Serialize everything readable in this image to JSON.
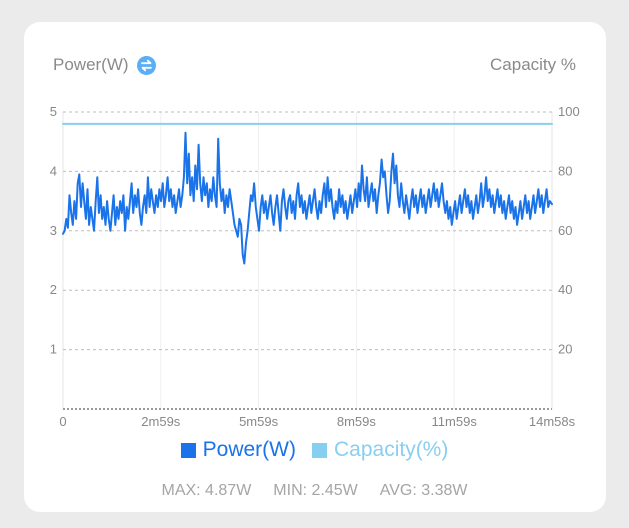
{
  "header": {
    "left_title": "Power(W)",
    "swap_icon": "swap-arrows-icon",
    "right_title": "Capacity %"
  },
  "colors": {
    "power": "#1a73e8",
    "capacity": "#87cff0",
    "grid": "#bdbdbd",
    "tick_text": "#888888"
  },
  "legend": {
    "power_label": "Power(W)",
    "capacity_label": "Capacity(%)"
  },
  "stats": {
    "max": "MAX: 4.87W",
    "min": "MIN: 2.45W",
    "avg": "AVG: 3.38W"
  },
  "chart_data": {
    "type": "line",
    "x_range": [
      0,
      898
    ],
    "x_ticks": [
      "0",
      "2m59s",
      "5m59s",
      "8m59s",
      "11m59s",
      "14m58s"
    ],
    "y_left": {
      "label": "Power(W)",
      "range": [
        0,
        5
      ],
      "ticks": [
        "1",
        "2",
        "3",
        "4",
        "5"
      ]
    },
    "y_right": {
      "label": "Capacity %",
      "range": [
        0,
        100
      ],
      "ticks": [
        "20",
        "40",
        "60",
        "80",
        "100"
      ]
    },
    "grid": true,
    "series": [
      {
        "name": "Power(W)",
        "axis": "left",
        "points": [
          [
            0,
            2.95
          ],
          [
            3,
            3.0
          ],
          [
            6,
            3.2
          ],
          [
            9,
            3.05
          ],
          [
            12,
            3.6
          ],
          [
            15,
            3.3
          ],
          [
            18,
            3.1
          ],
          [
            21,
            3.5
          ],
          [
            24,
            3.2
          ],
          [
            27,
            3.8
          ],
          [
            30,
            3.95
          ],
          [
            33,
            3.4
          ],
          [
            36,
            3.8
          ],
          [
            39,
            3.5
          ],
          [
            42,
            3.2
          ],
          [
            45,
            3.7
          ],
          [
            48,
            3.1
          ],
          [
            51,
            3.4
          ],
          [
            54,
            3.2
          ],
          [
            57,
            3.0
          ],
          [
            60,
            3.5
          ],
          [
            63,
            3.9
          ],
          [
            66,
            3.3
          ],
          [
            69,
            3.6
          ],
          [
            72,
            3.2
          ],
          [
            75,
            3.4
          ],
          [
            78,
            3.1
          ],
          [
            81,
            3.5
          ],
          [
            84,
            3.2
          ],
          [
            87,
            3.0
          ],
          [
            90,
            3.3
          ],
          [
            93,
            3.6
          ],
          [
            96,
            3.1
          ],
          [
            99,
            3.4
          ],
          [
            102,
            3.2
          ],
          [
            105,
            3.5
          ],
          [
            108,
            3.3
          ],
          [
            111,
            3.6
          ],
          [
            114,
            3.0
          ],
          [
            117,
            3.4
          ],
          [
            120,
            3.2
          ],
          [
            123,
            3.5
          ],
          [
            126,
            3.8
          ],
          [
            129,
            3.3
          ],
          [
            132,
            3.6
          ],
          [
            135,
            3.4
          ],
          [
            138,
            3.7
          ],
          [
            141,
            3.3
          ],
          [
            144,
            3.1
          ],
          [
            147,
            3.4
          ],
          [
            150,
            3.6
          ],
          [
            153,
            3.3
          ],
          [
            156,
            3.9
          ],
          [
            159,
            3.4
          ],
          [
            162,
            3.7
          ],
          [
            165,
            3.5
          ],
          [
            168,
            3.3
          ],
          [
            171,
            3.6
          ],
          [
            174,
            3.4
          ],
          [
            177,
            3.7
          ],
          [
            180,
            3.5
          ],
          [
            183,
            3.8
          ],
          [
            186,
            3.4
          ],
          [
            189,
            3.6
          ],
          [
            192,
            3.9
          ],
          [
            195,
            3.5
          ],
          [
            198,
            3.7
          ],
          [
            201,
            3.4
          ],
          [
            204,
            3.6
          ],
          [
            207,
            3.3
          ],
          [
            210,
            3.5
          ],
          [
            213,
            3.7
          ],
          [
            216,
            3.4
          ],
          [
            219,
            3.6
          ],
          [
            222,
            3.9
          ],
          [
            225,
            4.65
          ],
          [
            228,
            3.8
          ],
          [
            231,
            4.3
          ],
          [
            234,
            3.6
          ],
          [
            237,
            3.9
          ],
          [
            240,
            3.5
          ],
          [
            243,
            4.1
          ],
          [
            246,
            3.7
          ],
          [
            249,
            4.45
          ],
          [
            252,
            3.8
          ],
          [
            255,
            3.5
          ],
          [
            258,
            3.9
          ],
          [
            261,
            3.6
          ],
          [
            264,
            3.8
          ],
          [
            267,
            3.4
          ],
          [
            270,
            3.7
          ],
          [
            273,
            3.5
          ],
          [
            276,
            3.9
          ],
          [
            279,
            3.6
          ],
          [
            282,
            3.4
          ],
          [
            285,
            4.55
          ],
          [
            288,
            3.8
          ],
          [
            291,
            3.5
          ],
          [
            294,
            3.7
          ],
          [
            297,
            3.3
          ],
          [
            300,
            3.6
          ],
          [
            303,
            3.4
          ],
          [
            306,
            3.7
          ],
          [
            309,
            3.5
          ],
          [
            312,
            3.3
          ],
          [
            315,
            3.1
          ],
          [
            318,
            3.0
          ],
          [
            321,
            2.9
          ],
          [
            324,
            3.2
          ],
          [
            327,
            3.1
          ],
          [
            330,
            2.6
          ],
          [
            333,
            2.45
          ],
          [
            336,
            2.8
          ],
          [
            339,
            3.0
          ],
          [
            342,
            3.3
          ],
          [
            345,
            3.6
          ],
          [
            348,
            3.5
          ],
          [
            351,
            3.8
          ],
          [
            354,
            3.4
          ],
          [
            357,
            3.2
          ],
          [
            360,
            3.0
          ],
          [
            363,
            3.4
          ],
          [
            366,
            3.6
          ],
          [
            369,
            3.3
          ],
          [
            372,
            3.5
          ],
          [
            375,
            3.2
          ],
          [
            378,
            3.4
          ],
          [
            381,
            3.6
          ],
          [
            384,
            3.3
          ],
          [
            387,
            3.1
          ],
          [
            390,
            3.4
          ],
          [
            393,
            3.6
          ],
          [
            396,
            3.3
          ],
          [
            399,
            3.0
          ],
          [
            402,
            3.5
          ],
          [
            405,
            3.7
          ],
          [
            408,
            3.4
          ],
          [
            411,
            3.2
          ],
          [
            414,
            3.5
          ],
          [
            417,
            3.6
          ],
          [
            420,
            3.3
          ],
          [
            423,
            3.5
          ],
          [
            426,
            3.2
          ],
          [
            429,
            3.6
          ],
          [
            432,
            3.8
          ],
          [
            435,
            3.4
          ],
          [
            438,
            3.6
          ],
          [
            441,
            3.3
          ],
          [
            444,
            3.5
          ],
          [
            447,
            3.2
          ],
          [
            450,
            3.4
          ],
          [
            453,
            3.6
          ],
          [
            456,
            3.3
          ],
          [
            459,
            3.5
          ],
          [
            462,
            3.7
          ],
          [
            465,
            3.4
          ],
          [
            468,
            3.2
          ],
          [
            471,
            3.5
          ],
          [
            474,
            3.3
          ],
          [
            477,
            3.6
          ],
          [
            480,
            3.8
          ],
          [
            483,
            3.4
          ],
          [
            486,
            3.9
          ],
          [
            489,
            3.5
          ],
          [
            492,
            3.7
          ],
          [
            495,
            3.4
          ],
          [
            498,
            3.2
          ],
          [
            501,
            3.5
          ],
          [
            504,
            3.3
          ],
          [
            507,
            3.7
          ],
          [
            510,
            3.4
          ],
          [
            513,
            3.6
          ],
          [
            516,
            3.3
          ],
          [
            519,
            3.5
          ],
          [
            522,
            3.2
          ],
          [
            525,
            3.4
          ],
          [
            528,
            3.6
          ],
          [
            531,
            3.3
          ],
          [
            534,
            3.5
          ],
          [
            537,
            3.7
          ],
          [
            540,
            3.4
          ],
          [
            543,
            3.8
          ],
          [
            546,
            3.5
          ],
          [
            549,
            4.1
          ],
          [
            552,
            3.7
          ],
          [
            555,
            3.5
          ],
          [
            558,
            3.9
          ],
          [
            561,
            3.4
          ],
          [
            564,
            3.6
          ],
          [
            567,
            3.8
          ],
          [
            570,
            3.5
          ],
          [
            573,
            3.7
          ],
          [
            576,
            3.3
          ],
          [
            579,
            3.6
          ],
          [
            582,
            3.8
          ],
          [
            585,
            4.2
          ],
          [
            588,
            3.9
          ],
          [
            591,
            4.0
          ],
          [
            594,
            3.6
          ],
          [
            597,
            3.3
          ],
          [
            600,
            3.5
          ],
          [
            603,
            4.0
          ],
          [
            606,
            4.3
          ],
          [
            609,
            3.8
          ],
          [
            612,
            4.1
          ],
          [
            615,
            3.6
          ],
          [
            618,
            3.4
          ],
          [
            621,
            3.8
          ],
          [
            624,
            3.5
          ],
          [
            627,
            3.3
          ],
          [
            630,
            3.6
          ],
          [
            633,
            3.4
          ],
          [
            636,
            3.2
          ],
          [
            639,
            3.5
          ],
          [
            642,
            3.7
          ],
          [
            645,
            3.4
          ],
          [
            648,
            3.6
          ],
          [
            651,
            3.3
          ],
          [
            654,
            3.5
          ],
          [
            657,
            3.7
          ],
          [
            660,
            3.4
          ],
          [
            663,
            3.6
          ],
          [
            666,
            3.3
          ],
          [
            669,
            3.5
          ],
          [
            672,
            3.7
          ],
          [
            675,
            3.4
          ],
          [
            678,
            3.6
          ],
          [
            681,
            3.8
          ],
          [
            684,
            3.5
          ],
          [
            687,
            3.7
          ],
          [
            690,
            3.4
          ],
          [
            693,
            3.6
          ],
          [
            696,
            3.8
          ],
          [
            699,
            3.5
          ],
          [
            702,
            3.3
          ],
          [
            705,
            3.5
          ],
          [
            708,
            3.2
          ],
          [
            711,
            3.4
          ],
          [
            714,
            3.1
          ],
          [
            717,
            3.3
          ],
          [
            720,
            3.5
          ],
          [
            723,
            3.2
          ],
          [
            726,
            3.4
          ],
          [
            729,
            3.6
          ],
          [
            732,
            3.3
          ],
          [
            735,
            3.5
          ],
          [
            738,
            3.7
          ],
          [
            741,
            3.4
          ],
          [
            744,
            3.6
          ],
          [
            747,
            3.3
          ],
          [
            750,
            3.5
          ],
          [
            753,
            3.2
          ],
          [
            756,
            3.4
          ],
          [
            759,
            3.6
          ],
          [
            762,
            3.3
          ],
          [
            765,
            3.5
          ],
          [
            768,
            3.8
          ],
          [
            771,
            3.4
          ],
          [
            774,
            3.6
          ],
          [
            777,
            3.9
          ],
          [
            780,
            3.5
          ],
          [
            783,
            3.7
          ],
          [
            786,
            3.4
          ],
          [
            789,
            3.6
          ],
          [
            792,
            3.3
          ],
          [
            795,
            3.5
          ],
          [
            798,
            3.7
          ],
          [
            801,
            3.4
          ],
          [
            804,
            3.6
          ],
          [
            807,
            3.3
          ],
          [
            810,
            3.5
          ],
          [
            813,
            3.2
          ],
          [
            816,
            3.4
          ],
          [
            819,
            3.6
          ],
          [
            822,
            3.3
          ],
          [
            825,
            3.5
          ],
          [
            828,
            3.2
          ],
          [
            831,
            3.4
          ],
          [
            834,
            3.1
          ],
          [
            837,
            3.3
          ],
          [
            840,
            3.5
          ],
          [
            843,
            3.2
          ],
          [
            846,
            3.4
          ],
          [
            849,
            3.6
          ],
          [
            852,
            3.3
          ],
          [
            855,
            3.5
          ],
          [
            858,
            3.2
          ],
          [
            861,
            3.4
          ],
          [
            864,
            3.6
          ],
          [
            867,
            3.3
          ],
          [
            870,
            3.5
          ],
          [
            873,
            3.7
          ],
          [
            876,
            3.4
          ],
          [
            879,
            3.6
          ],
          [
            882,
            3.3
          ],
          [
            885,
            3.5
          ],
          [
            888,
            3.7
          ],
          [
            891,
            3.4
          ],
          [
            894,
            3.5
          ],
          [
            898,
            3.45
          ]
        ]
      },
      {
        "name": "Capacity(%)",
        "axis": "right",
        "points": [
          [
            0,
            96
          ],
          [
            898,
            96
          ]
        ]
      }
    ]
  }
}
